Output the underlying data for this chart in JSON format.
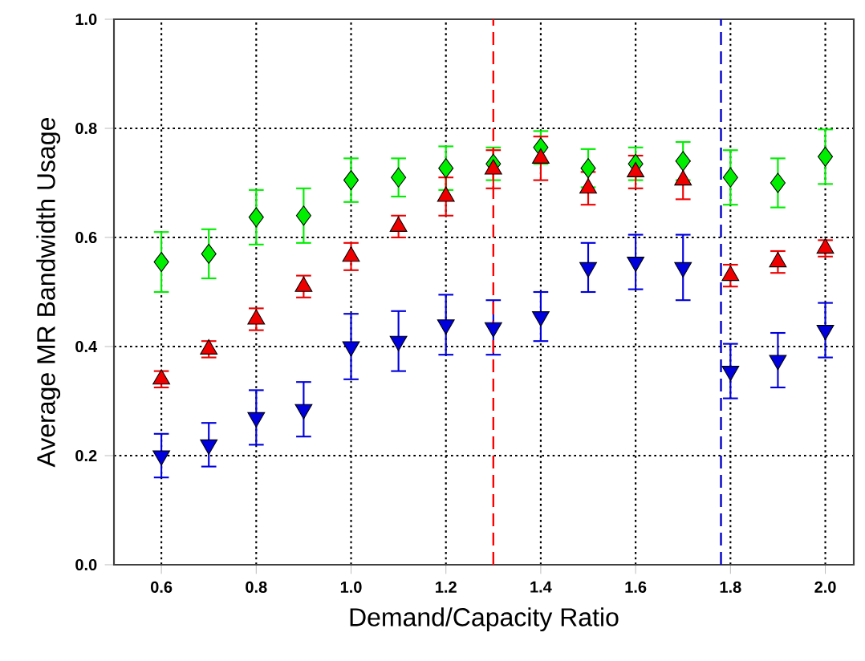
{
  "chart_data": {
    "type": "scatter",
    "xlabel": "Demand/Capacity Ratio",
    "ylabel": "Average MR Bandwidth Usage",
    "x": [
      0.6,
      0.7,
      0.8,
      0.9,
      1.0,
      1.1,
      1.2,
      1.3,
      1.4,
      1.5,
      1.6,
      1.7,
      1.8,
      1.9,
      2.0
    ],
    "series": [
      {
        "color": "#00ee00",
        "marker": "diamond",
        "values": [
          0.555,
          0.57,
          0.637,
          0.64,
          0.705,
          0.71,
          0.727,
          0.735,
          0.765,
          0.727,
          0.735,
          0.74,
          0.71,
          0.7,
          0.748
        ],
        "errors": [
          0.055,
          0.045,
          0.05,
          0.05,
          0.04,
          0.035,
          0.04,
          0.03,
          0.03,
          0.035,
          0.03,
          0.035,
          0.05,
          0.045,
          0.05
        ]
      },
      {
        "color": "#ee0000",
        "marker": "triangle",
        "values": [
          0.34,
          0.395,
          0.45,
          0.51,
          0.565,
          0.62,
          0.675,
          0.725,
          0.745,
          0.69,
          0.72,
          0.705,
          0.53,
          0.555,
          0.58
        ],
        "errors": [
          0.015,
          0.015,
          0.02,
          0.02,
          0.025,
          0.02,
          0.035,
          0.035,
          0.04,
          0.03,
          0.03,
          0.035,
          0.02,
          0.02,
          0.015
        ]
      },
      {
        "color": "#0000dd",
        "marker": "triangle down",
        "values": [
          0.2,
          0.22,
          0.27,
          0.285,
          0.4,
          0.41,
          0.44,
          0.435,
          0.455,
          0.545,
          0.555,
          0.545,
          0.355,
          0.375,
          0.43
        ],
        "errors": [
          0.04,
          0.04,
          0.05,
          0.05,
          0.06,
          0.055,
          0.055,
          0.05,
          0.045,
          0.045,
          0.05,
          0.06,
          0.05,
          0.05,
          0.05
        ]
      }
    ],
    "xlim": [
      0.5,
      2.06
    ],
    "xticks": [
      {
        "value": 0.6,
        "label": "0.6"
      },
      {
        "value": 0.8,
        "label": "0.8"
      },
      {
        "value": 1.0,
        "label": "1.0"
      },
      {
        "value": 1.2,
        "label": "1.2"
      },
      {
        "value": 1.4,
        "label": "1.4"
      },
      {
        "value": 1.6,
        "label": "1.6"
      },
      {
        "value": 1.8,
        "label": "1.8"
      },
      {
        "value": 2.0,
        "label": "2.0"
      }
    ],
    "ylim": [
      0,
      1
    ],
    "yticks": [
      {
        "value": 0,
        "label": "0.0"
      },
      {
        "value": 0.2,
        "label": "0.2"
      },
      {
        "value": 0.4,
        "label": "0.4"
      },
      {
        "value": 0.6,
        "label": "0.6"
      },
      {
        "value": 0.8,
        "label": "0.8"
      },
      {
        "value": 1.0,
        "label": "1.0"
      }
    ],
    "ref_lines": [
      {
        "axis": "x",
        "value": 1.3,
        "color": "#ff0000",
        "line_style": "dashed"
      },
      {
        "axis": "x",
        "value": 1.78,
        "color": "#0000cc",
        "line_style": "dashed"
      }
    ],
    "grid": true
  }
}
